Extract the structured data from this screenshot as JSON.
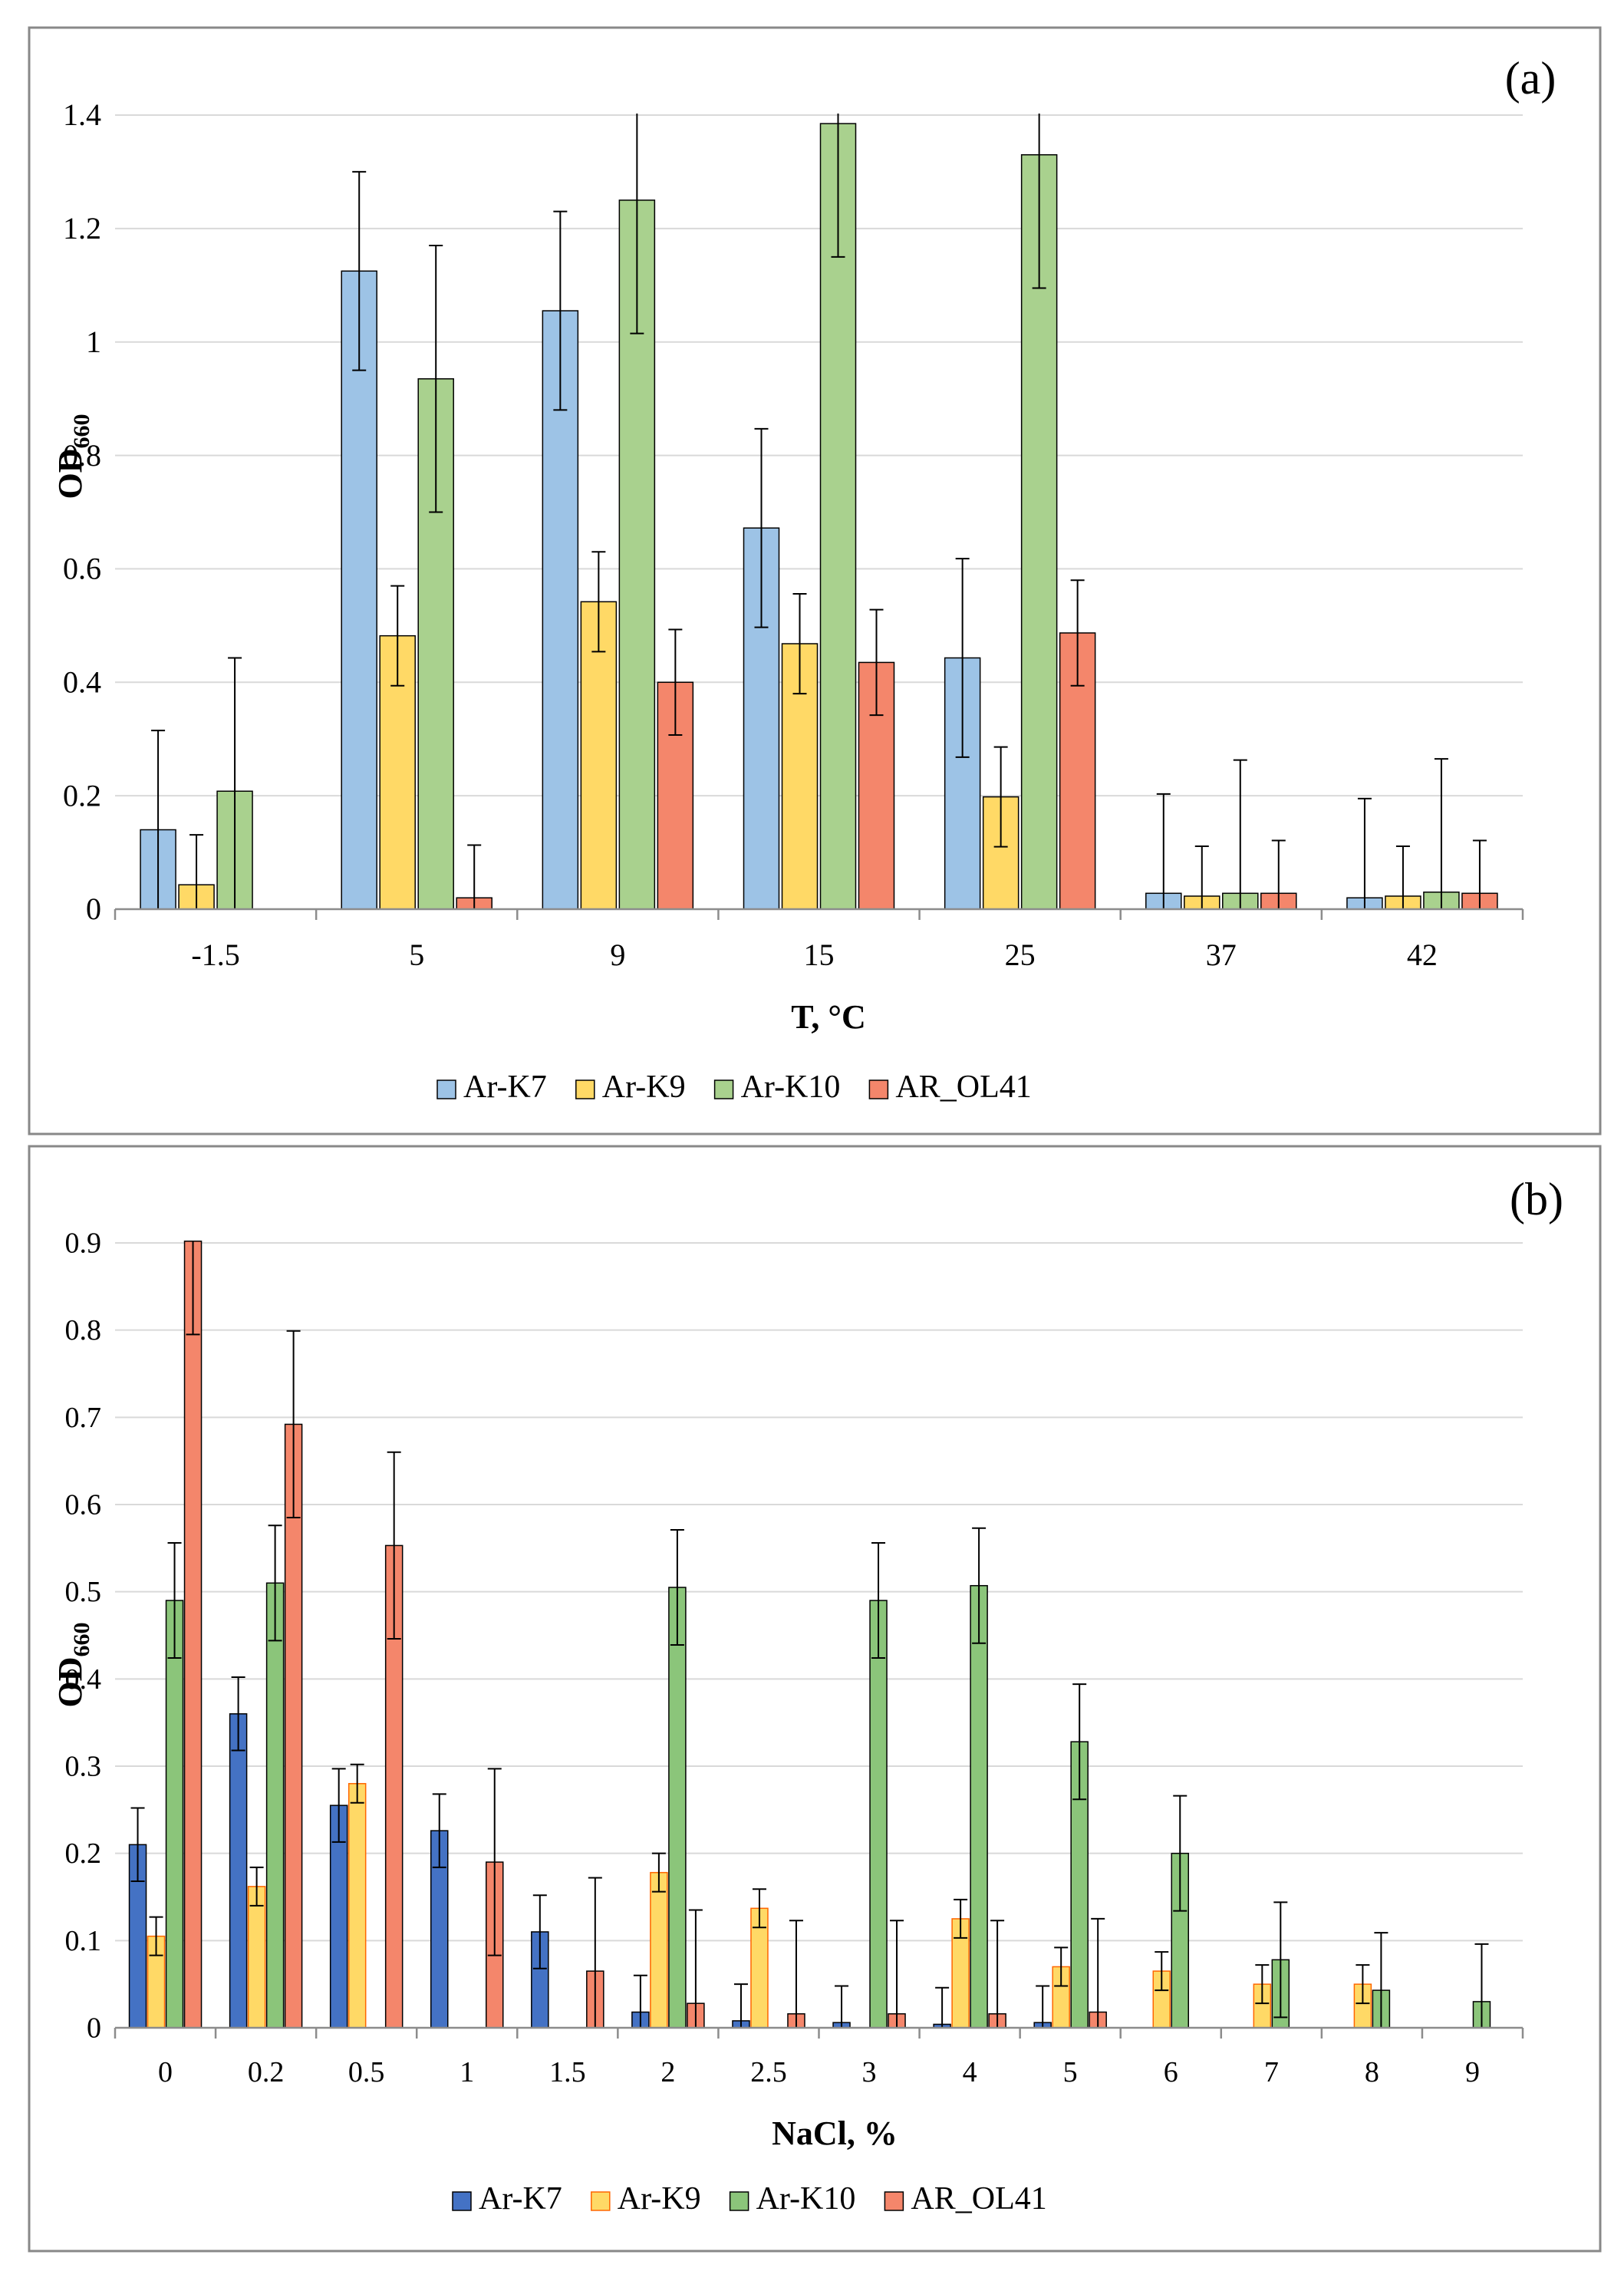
{
  "chart_data": [
    {
      "panel_label": "(a)",
      "type": "bar",
      "title": "",
      "xlabel": "T, °C",
      "ylabel": {
        "main": "OD",
        "subscript": "660"
      },
      "ylim": [
        0,
        1.4
      ],
      "yticks": [
        "0",
        "0.2",
        "0.4",
        "0.6",
        "0.8",
        "1",
        "1.2",
        "1.4"
      ],
      "grid": true,
      "legend_position": "bottom",
      "categories": [
        "-1.5",
        "5",
        "9",
        "15",
        "25",
        "37",
        "42"
      ],
      "series": [
        {
          "name": "Ar-K7",
          "color": "#9DC3E6",
          "stroke": "#000000",
          "values": [
            0.14,
            1.125,
            1.055,
            0.672,
            0.443,
            0.028,
            0.02
          ],
          "errors": [
            0.175,
            0.175,
            0.175,
            0.175,
            0.175,
            0.175,
            0.175
          ]
        },
        {
          "name": "Ar-K9",
          "color": "#FFD966",
          "stroke": "#000000",
          "values": [
            0.043,
            0.482,
            0.542,
            0.468,
            0.198,
            0.023,
            0.023
          ],
          "errors": [
            0.088,
            0.088,
            0.088,
            0.088,
            0.088,
            0.088,
            0.088
          ]
        },
        {
          "name": "Ar-K10",
          "color": "#A9D18E",
          "stroke": "#000000",
          "values": [
            0.208,
            0.935,
            1.25,
            1.385,
            1.33,
            0.028,
            0.03
          ],
          "errors": [
            0.235,
            0.235,
            0.235,
            0.235,
            0.235,
            0.235,
            0.235
          ]
        },
        {
          "name": "AR_OL41",
          "color": "#F4866B",
          "stroke": "#000000",
          "values": [
            null,
            0.02,
            0.4,
            0.435,
            0.487,
            0.028,
            0.028
          ],
          "errors": [
            null,
            0.093,
            0.093,
            0.093,
            0.093,
            0.093,
            0.093
          ]
        }
      ]
    },
    {
      "panel_label": "(b)",
      "type": "bar",
      "title": "",
      "xlabel": "NaCl, %",
      "ylabel": {
        "main": "OD",
        "subscript": "660"
      },
      "ylim": [
        0,
        0.9
      ],
      "yticks": [
        "0",
        "0.1",
        "0.2",
        "0.3",
        "0.4",
        "0.5",
        "0.6",
        "0.7",
        "0.8",
        "0.9"
      ],
      "grid": true,
      "legend_position": "bottom",
      "categories": [
        "0",
        "0.2",
        "0.5",
        "1",
        "1.5",
        "2",
        "2.5",
        "3",
        "4",
        "5",
        "6",
        "7",
        "8",
        "9"
      ],
      "series": [
        {
          "name": "Ar-K7",
          "color": "#4472C4",
          "stroke": "#000000",
          "values": [
            0.21,
            0.36,
            0.255,
            0.226,
            0.11,
            0.018,
            0.008,
            0.006,
            0.004,
            0.006,
            null,
            null,
            null,
            null
          ],
          "errors": [
            0.042,
            0.042,
            0.042,
            0.042,
            0.042,
            0.042,
            0.042,
            0.042,
            0.042,
            0.042,
            null,
            null,
            null,
            null
          ]
        },
        {
          "name": "Ar-K9",
          "color": "#FFD966",
          "stroke": "#FF6600",
          "values": [
            0.105,
            0.162,
            0.28,
            null,
            null,
            0.178,
            0.137,
            null,
            0.125,
            0.07,
            0.065,
            0.05,
            0.05,
            null
          ],
          "errors": [
            0.022,
            0.022,
            0.022,
            null,
            null,
            0.022,
            0.022,
            null,
            0.022,
            0.022,
            0.022,
            0.022,
            0.022,
            null
          ]
        },
        {
          "name": "Ar-K10",
          "color": "#8BC57A",
          "stroke": "#000000",
          "values": [
            0.49,
            0.51,
            null,
            null,
            null,
            0.505,
            null,
            0.49,
            0.507,
            0.328,
            0.2,
            0.078,
            0.043,
            0.03
          ],
          "errors": [
            0.066,
            0.066,
            null,
            null,
            null,
            0.066,
            null,
            0.066,
            0.066,
            0.066,
            0.066,
            0.066,
            0.066,
            0.066
          ]
        },
        {
          "name": "AR_OL41",
          "color": "#F4866B",
          "stroke": "#000000",
          "values": [
            0.902,
            0.692,
            0.553,
            0.19,
            0.065,
            0.028,
            0.016,
            0.016,
            0.016,
            0.018,
            null,
            null,
            null,
            null
          ],
          "errors": [
            0.107,
            0.107,
            0.107,
            0.107,
            0.107,
            0.107,
            0.107,
            0.107,
            0.107,
            0.107,
            null,
            null,
            null,
            null
          ]
        }
      ]
    }
  ]
}
